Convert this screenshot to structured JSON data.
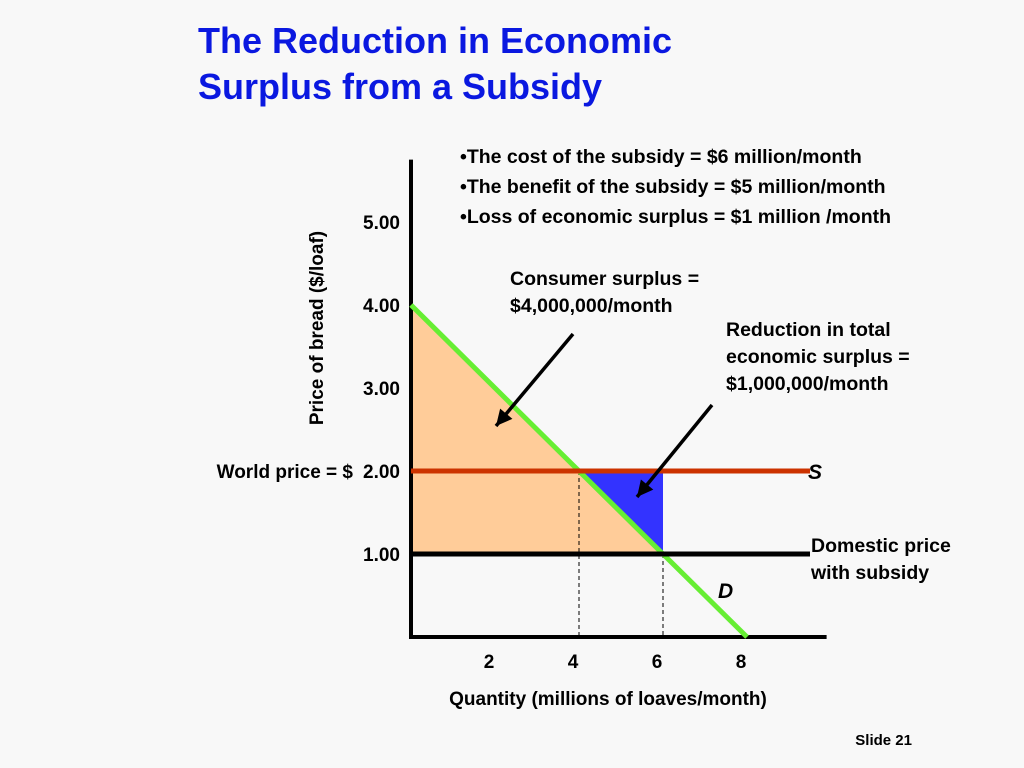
{
  "title": {
    "line1": "The Reduction in Economic",
    "line2": "Surplus from a Subsidy"
  },
  "bullets": [
    "•The cost of the subsidy = $6 million/month",
    "•The benefit of the subsidy = $5 million/month",
    "•Loss of economic surplus = $1 million /month"
  ],
  "annotations": {
    "consumer_surplus": [
      "Consumer surplus =",
      "$4,000,000/month"
    ],
    "reduction": [
      "Reduction in total",
      "economic surplus =",
      "$1,000,000/month"
    ],
    "domestic_price": [
      "Domestic price",
      "with subsidy"
    ],
    "world_price_prefix": "World price = $"
  },
  "slide_number": "Slide 21",
  "chart_data": {
    "type": "line",
    "xlabel": "Quantity (millions of loaves/month)",
    "ylabel": "Price of bread ($/loaf)",
    "x_ticks": [
      2,
      4,
      6,
      8
    ],
    "y_ticks": [
      "1.00",
      "2.00",
      "3.00",
      "4.00",
      "5.00"
    ],
    "xlim": [
      0,
      9.8
    ],
    "ylim": [
      0,
      5.8
    ],
    "series": [
      {
        "name": "D",
        "color": "#66ee33",
        "points": [
          [
            0,
            4
          ],
          [
            8,
            0
          ]
        ]
      },
      {
        "name": "S",
        "color": "#cc3300",
        "points": [
          [
            0,
            2
          ],
          [
            9.5,
            2
          ]
        ]
      },
      {
        "name": "",
        "color": "#000000",
        "points": [
          [
            0,
            1
          ],
          [
            9.5,
            1
          ]
        ]
      }
    ],
    "regions": [
      {
        "name": "consumer-surplus",
        "color": "#ffcc99",
        "polygon": [
          [
            0,
            4
          ],
          [
            6,
            1
          ],
          [
            0,
            1
          ]
        ]
      },
      {
        "name": "deadweight-loss",
        "color": "#3333ff",
        "polygon": [
          [
            4,
            2
          ],
          [
            6,
            2
          ],
          [
            6,
            1
          ]
        ]
      }
    ],
    "guides": [
      [
        4,
        2
      ],
      [
        6,
        1
      ]
    ],
    "curve_labels": {
      "supply": "S",
      "demand": "D"
    }
  }
}
